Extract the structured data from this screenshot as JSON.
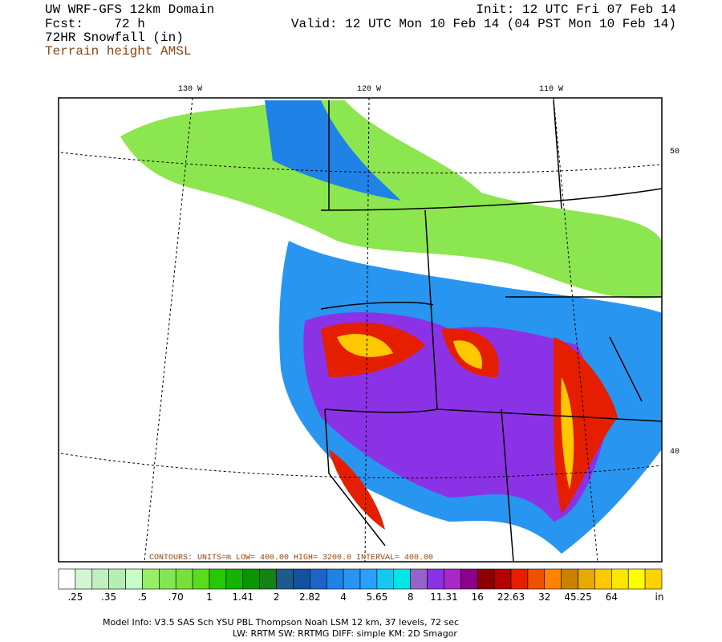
{
  "header": {
    "model": "UW WRF-GFS 12km Domain",
    "forecast": "Fcst:    72 h",
    "field": "72HR Snowfall (in)",
    "overlay": "Terrain height AMSL",
    "init": "Init: 12 UTC Fri 07 Feb 14",
    "valid": "Valid: 12 UTC Mon 10 Feb 14 (04 PST Mon 10 Feb 14)"
  },
  "map": {
    "lon_labels": [
      "130 W",
      "120 W",
      "110 W"
    ],
    "lat_labels": [
      "50",
      "40"
    ],
    "contour_info": "CONTOURS: UNITS=m   LOW=  400.00   HIGH= 3200.0   INTERVAL=  400.00"
  },
  "colorbar": {
    "colors": [
      "#ffffff",
      "#d4f5d4",
      "#c0f0c0",
      "#b4f0b4",
      "#c8ffc8",
      "#96f064",
      "#82e650",
      "#78e03c",
      "#5adc1e",
      "#28c800",
      "#14b400",
      "#0a9600",
      "#148214",
      "#1e5a8c",
      "#1450a0",
      "#1e64c8",
      "#1e82e6",
      "#2896f0",
      "#28a0ff",
      "#14c8f0",
      "#00e6e6",
      "#9664c8",
      "#8c32e6",
      "#aa28c8",
      "#8c008c",
      "#8c0000",
      "#b40000",
      "#e61e00",
      "#f05000",
      "#ff8200",
      "#c88200",
      "#e6aa00",
      "#ffc800",
      "#ffe600",
      "#ffff00",
      "#ffd200"
    ],
    "labels": [
      ".25",
      ".35",
      ".5",
      ".70",
      "1",
      "1.41",
      "2",
      "2.82",
      "4",
      "5.65",
      "8",
      "11.31",
      "16",
      "22.63",
      "32",
      "45.25",
      "64"
    ],
    "unit": "in"
  },
  "footer": {
    "line1": "Model Info: V3.5     SAS Sch YSU PBL  Thompson    Noah LSM  12 km,   37 levels,   72 sec",
    "line2": "LW: RRTM  SW: RRTMG    DIFF: simple  KM: 2D Smagor"
  }
}
